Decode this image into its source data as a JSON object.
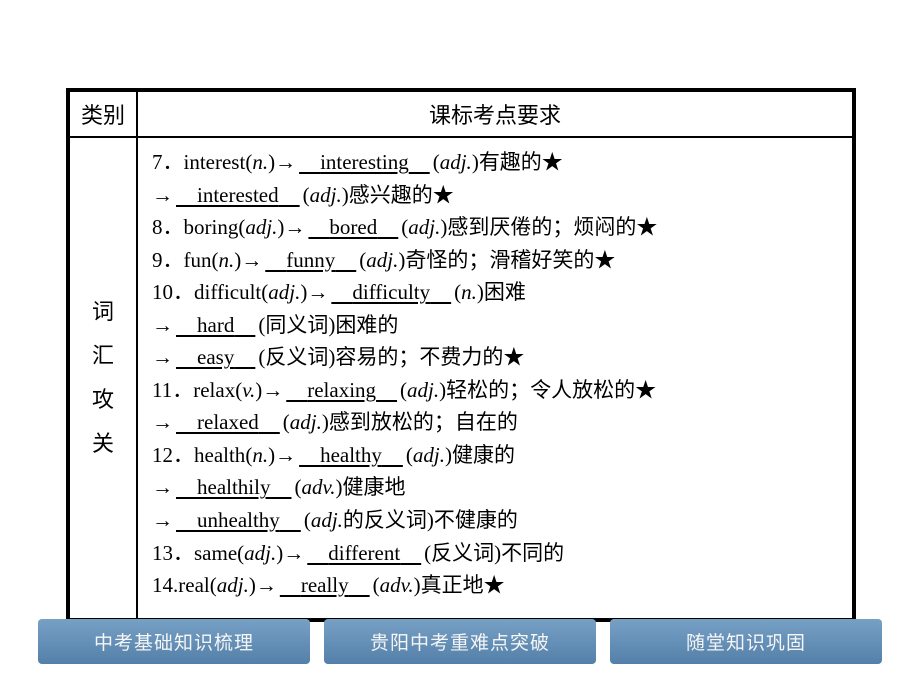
{
  "table": {
    "header_category": "类别",
    "header_requirement": "课标考点要求",
    "category_chars": [
      "词",
      "汇",
      "攻",
      "关"
    ]
  },
  "items": {
    "r7": {
      "num": "7．",
      "word": "interest",
      "pos": "n.",
      "ans": "interesting",
      "apos": "adj.",
      "def": "有趣的★"
    },
    "r7b": {
      "ans": "interested",
      "apos": "adj.",
      "def": "感兴趣的★"
    },
    "r8": {
      "num": "8．",
      "word": "boring",
      "pos": "adj.",
      "ans": "bored",
      "apos": "adj.",
      "def": "感到厌倦的；烦闷的★"
    },
    "r9": {
      "num": "9．",
      "word": "fun",
      "pos": "n.",
      "ans": "funny",
      "apos": "adj.",
      "def": "奇怪的；滑稽好笑的★"
    },
    "r10": {
      "num": "10．",
      "word": "difficult",
      "pos": "adj.",
      "ans": "difficulty",
      "apos": "n.",
      "def": "困难"
    },
    "r10b": {
      "ans": "hard",
      "note": "(同义词)困难的"
    },
    "r10c": {
      "ans": "easy",
      "note": "(反义词)容易的；不费力的★"
    },
    "r11": {
      "num": "11．",
      "word": "relax",
      "pos": "v.",
      "ans": "relaxing",
      "apos": "adj.",
      "def": "轻松的；令人放松的★"
    },
    "r11b": {
      "ans": "relaxed",
      "apos": "adj.",
      "def": "感到放松的；自在的"
    },
    "r12": {
      "num": "12．",
      "word": "health",
      "pos": "n.",
      "ans": "healthy",
      "apos": "adj.",
      "def": "健康的"
    },
    "r12b": {
      "ans": "healthily",
      "apos": "adv.",
      "def": "健康地"
    },
    "r12c": {
      "ans": "unhealthy",
      "note_it": "adj.",
      "note_after": "的反义词)不健康的"
    },
    "r13": {
      "num": "13．",
      "word": "same",
      "pos": "adj.",
      "ans": "different",
      "note": "(反义词)不同的"
    },
    "r14": {
      "num": "14.",
      "word": "real",
      "pos": "adj.",
      "ans": "really",
      "apos": "adv.",
      "def": "真正地★"
    }
  },
  "tabs": {
    "t1": "中考基础知识梳理",
    "t2": "贵阳中考重难点突破",
    "t3": "随堂知识巩固"
  },
  "colors": {
    "tab_bg": "#5a8bb8",
    "tab_fg": "#ffffff",
    "border": "#000000"
  }
}
